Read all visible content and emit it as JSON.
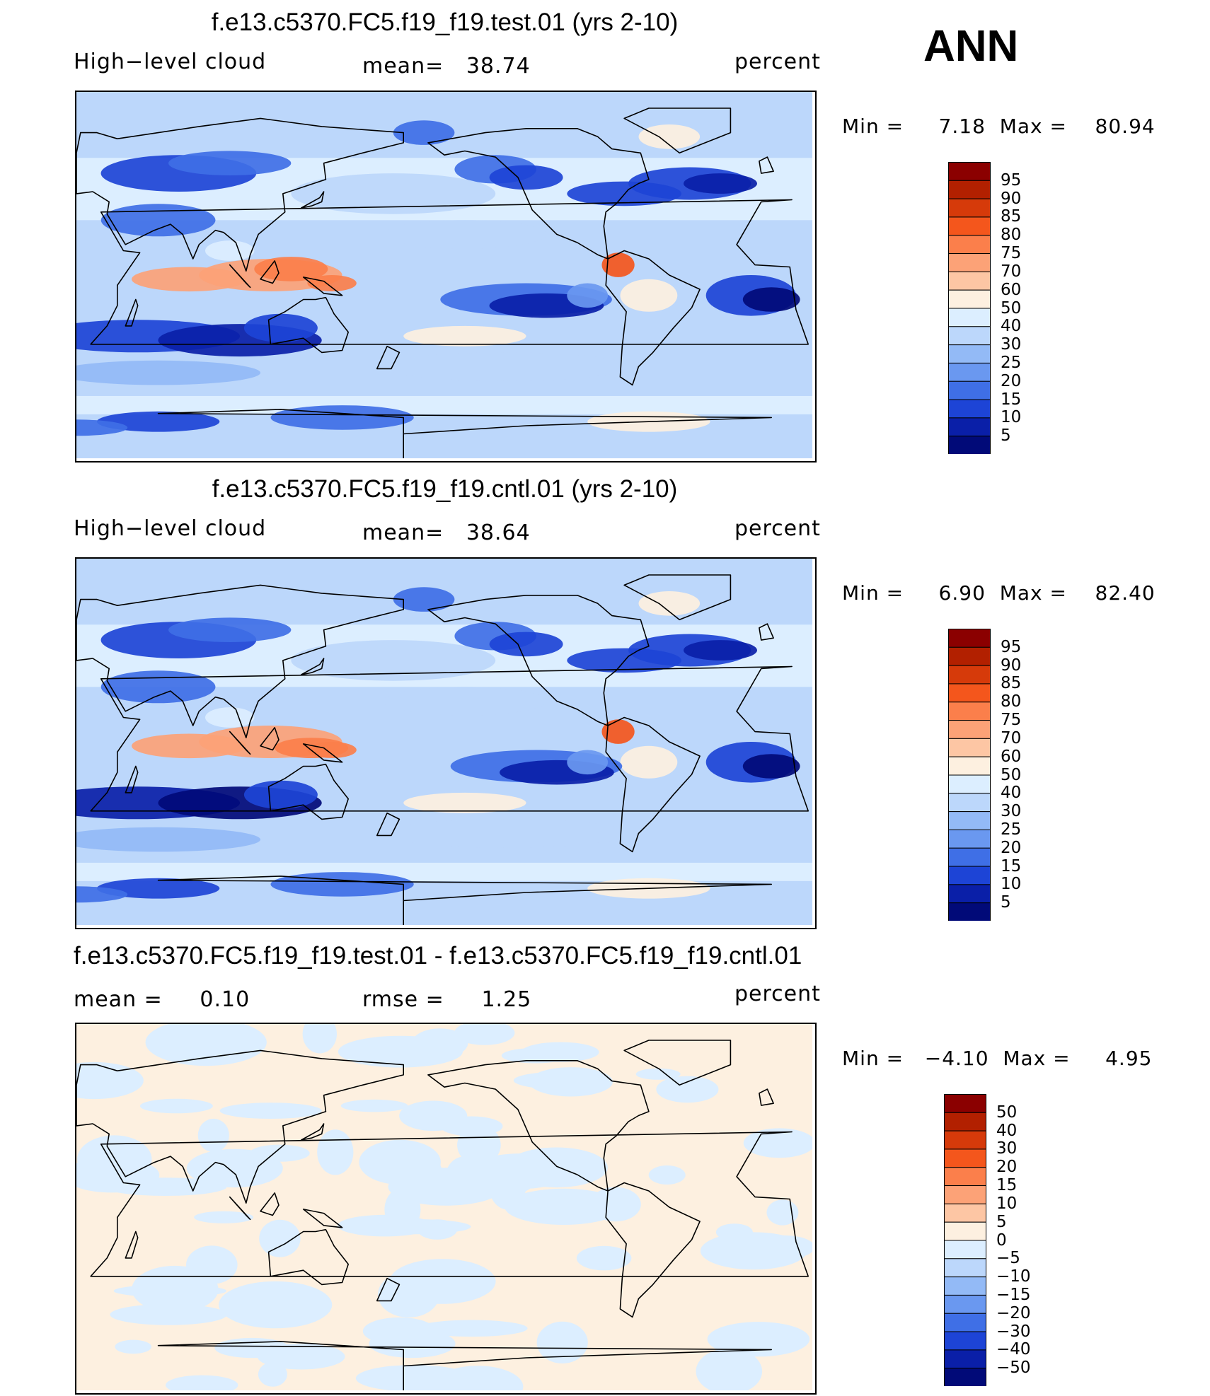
{
  "season": "ANN",
  "panels": [
    {
      "title": "f.e13.c5370.FC5.f19_f19.test.01 (yrs 2-10)",
      "left_label": "High−level cloud",
      "center_label": "mean=   38.74",
      "right_label": "percent",
      "minmax": "Min =     7.18  Max =    80.94",
      "colorbar": {
        "levels": [
          "95",
          "90",
          "85",
          "80",
          "75",
          "70",
          "60",
          "50",
          "40",
          "30",
          "25",
          "20",
          "15",
          "10",
          "5"
        ],
        "colors": [
          "#8b0000",
          "#b22000",
          "#d63a0a",
          "#f4561c",
          "#fb7f4b",
          "#fca277",
          "#fdc6a4",
          "#fdf0e0",
          "#dceeff",
          "#bcd7fb",
          "#93baf6",
          "#6a98f0",
          "#3f6fe6",
          "#1d44d6",
          "#0a1fa8",
          "#010a78"
        ]
      },
      "field": "test"
    },
    {
      "title": "f.e13.c5370.FC5.f19_f19.cntl.01 (yrs 2-10)",
      "left_label": "High−level cloud",
      "center_label": "mean=   38.64",
      "right_label": "percent",
      "minmax": "Min =     6.90  Max =    82.40",
      "colorbar": {
        "levels": [
          "95",
          "90",
          "85",
          "80",
          "75",
          "70",
          "60",
          "50",
          "40",
          "30",
          "25",
          "20",
          "15",
          "10",
          "5"
        ],
        "colors": [
          "#8b0000",
          "#b22000",
          "#d63a0a",
          "#f4561c",
          "#fb7f4b",
          "#fca277",
          "#fdc6a4",
          "#fdf0e0",
          "#dceeff",
          "#bcd7fb",
          "#93baf6",
          "#6a98f0",
          "#3f6fe6",
          "#1d44d6",
          "#0a1fa8",
          "#010a78"
        ]
      },
      "field": "cntl"
    },
    {
      "title": "f.e13.c5370.FC5.f19_f19.test.01 - f.e13.c5370.FC5.f19_f19.cntl.01",
      "left_label": "mean =     0.10",
      "center_label": "rmse =     1.25",
      "right_label": "percent",
      "minmax": "Min =   −4.10  Max =     4.95",
      "colorbar": {
        "levels": [
          "50",
          "40",
          "30",
          "20",
          "15",
          "10",
          "5",
          "0",
          "−5",
          "−10",
          "−15",
          "−20",
          "−30",
          "−40",
          "−50"
        ],
        "colors": [
          "#8b0000",
          "#b22000",
          "#d63a0a",
          "#f4561c",
          "#fb7f4b",
          "#fca277",
          "#fdc6a4",
          "#fdf0e0",
          "#dceeff",
          "#bcd7fb",
          "#93baf6",
          "#6a98f0",
          "#3f6fe6",
          "#1d44d6",
          "#0a1fa8",
          "#010a78"
        ]
      },
      "field": "diff"
    }
  ],
  "chart_data": [
    {
      "type": "heatmap",
      "title": "f.e13.c5370.FC5.f19_f19.test.01 (yrs 2-10)",
      "variable": "High−level cloud",
      "units": "percent",
      "mean": 38.74,
      "min": 7.18,
      "max": 80.94,
      "contour_levels": [
        5,
        10,
        15,
        20,
        25,
        30,
        40,
        50,
        60,
        70,
        75,
        80,
        85,
        90,
        95
      ]
    },
    {
      "type": "heatmap",
      "title": "f.e13.c5370.FC5.f19_f19.cntl.01 (yrs 2-10)",
      "variable": "High−level cloud",
      "units": "percent",
      "mean": 38.64,
      "min": 6.9,
      "max": 82.4,
      "contour_levels": [
        5,
        10,
        15,
        20,
        25,
        30,
        40,
        50,
        60,
        70,
        75,
        80,
        85,
        90,
        95
      ]
    },
    {
      "type": "heatmap",
      "title": "f.e13.c5370.FC5.f19_f19.test.01 - f.e13.c5370.FC5.f19_f19.cntl.01",
      "units": "percent",
      "mean": 0.1,
      "rmse": 1.25,
      "min": -4.1,
      "max": 4.95,
      "contour_levels": [
        -50,
        -40,
        -30,
        -20,
        -15,
        -10,
        -5,
        0,
        5,
        10,
        15,
        20,
        30,
        40,
        50
      ]
    }
  ]
}
